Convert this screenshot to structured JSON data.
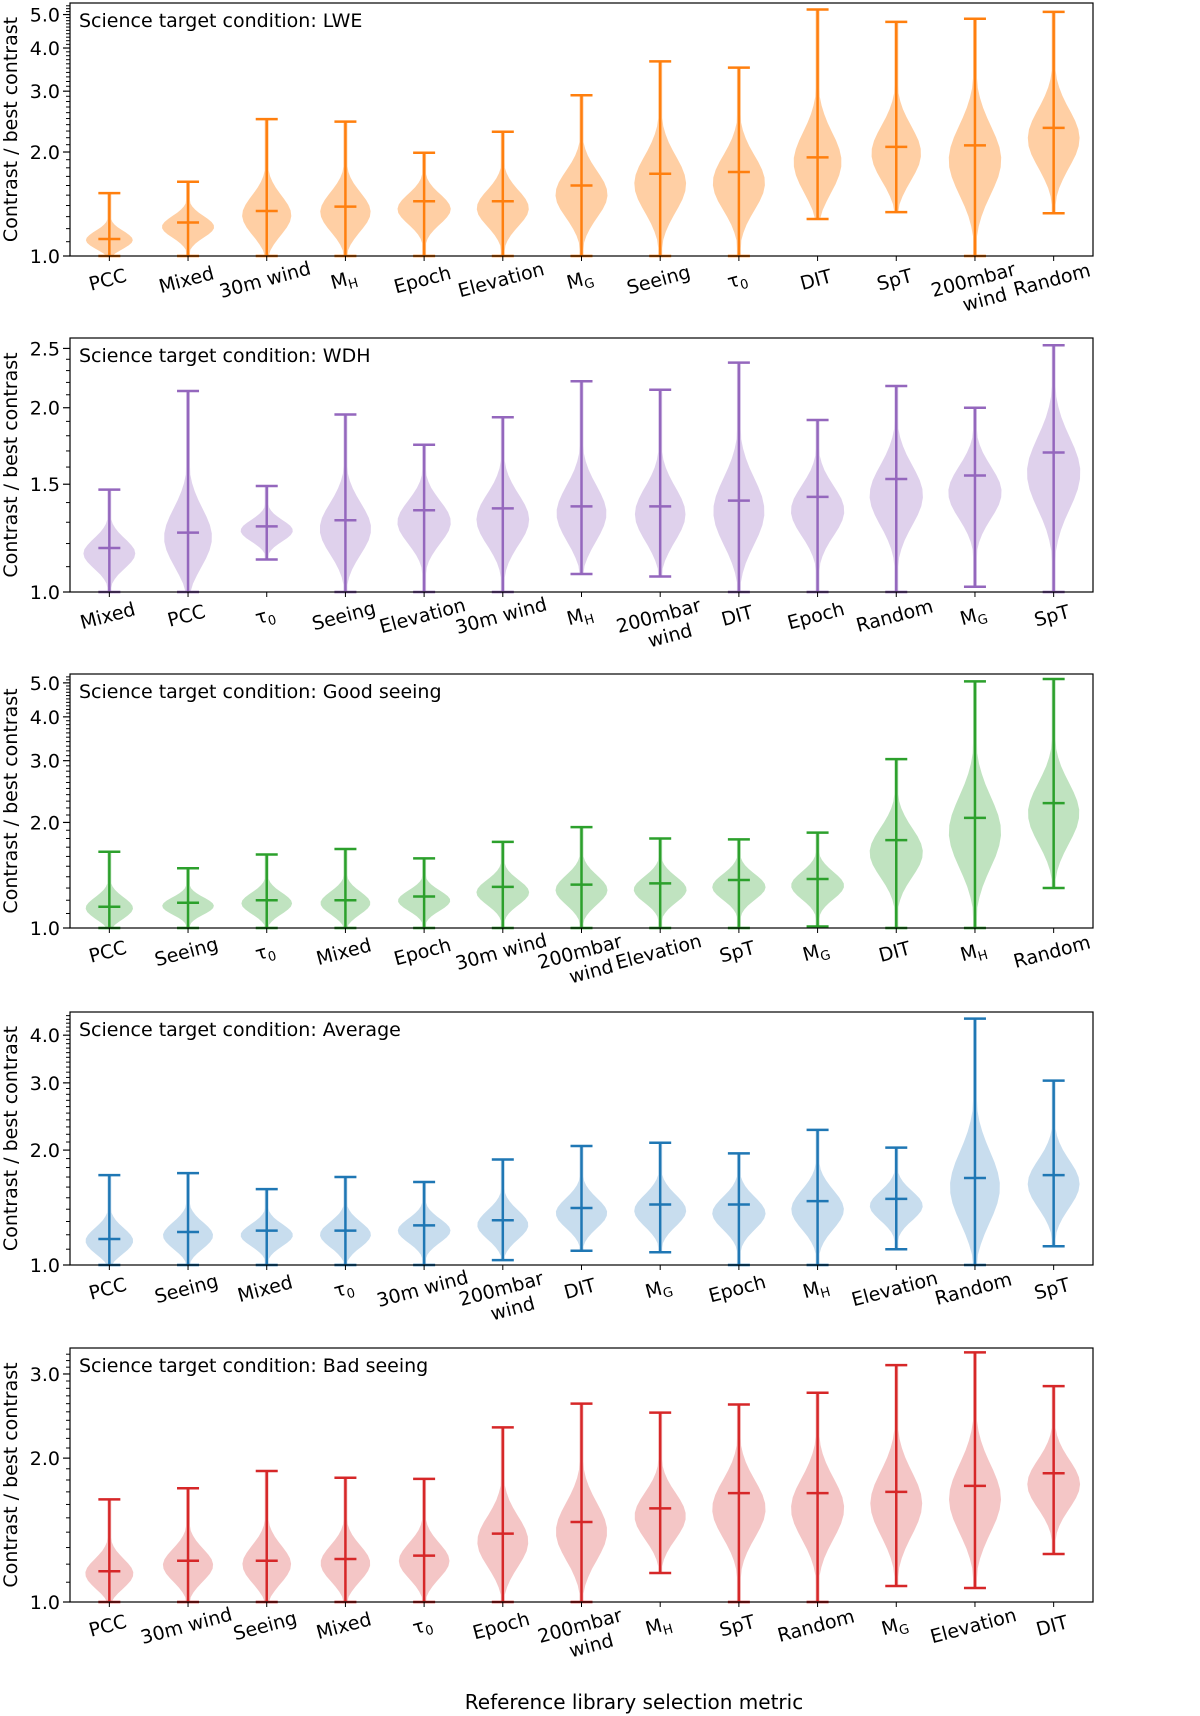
{
  "figure": {
    "xlabel": "Reference library selection metric",
    "ylabel": "Contrast / best contrast"
  },
  "chart_data": [
    {
      "type": "violin",
      "title": "Science target condition: LWE",
      "color": "#ff7f0e",
      "fill": "#ffbf86",
      "scale": "log",
      "ylim": [
        1.0,
        5.4
      ],
      "yticks": [
        1.0,
        2.0,
        3.0,
        4.0,
        5.0
      ],
      "ytick_labels": [
        "1.0",
        "2.0",
        "3.0",
        "4.0",
        "5.0"
      ],
      "categories": [
        "PCC",
        "Mixed",
        "30m wind",
        "M_H",
        "Epoch",
        "Elevation",
        "M_G",
        "Seeing",
        "τ_0",
        "DIT",
        "SpT",
        "200mbar wind",
        "Random"
      ],
      "min": [
        1.0,
        1.0,
        1.0,
        1.0,
        1.0,
        1.0,
        1.0,
        1.0,
        1.0,
        1.28,
        1.34,
        1.0,
        1.33
      ],
      "median": [
        1.12,
        1.25,
        1.35,
        1.39,
        1.44,
        1.44,
        1.6,
        1.73,
        1.75,
        1.93,
        2.07,
        2.09,
        2.35
      ],
      "max": [
        1.52,
        1.64,
        2.49,
        2.45,
        1.99,
        2.29,
        2.92,
        3.66,
        3.51,
        5.17,
        4.76,
        4.86,
        5.09
      ]
    },
    {
      "type": "violin",
      "title": "Science target condition: WDH",
      "color": "#9467bd",
      "fill": "#d4c2e5",
      "scale": "log",
      "ylim": [
        1.0,
        2.6
      ],
      "yticks": [
        1.0,
        1.5,
        2.0,
        2.5
      ],
      "ytick_labels": [
        "1.0",
        "1.5",
        "2.0",
        "2.5"
      ],
      "categories": [
        "Mixed",
        "PCC",
        "τ_0",
        "Seeing",
        "Elevation",
        "30m wind",
        "M_H",
        "200mbar wind",
        "DIT",
        "Epoch",
        "Random",
        "M_G",
        "SpT"
      ],
      "min": [
        1.0,
        1.0,
        1.13,
        1.0,
        1.0,
        1.0,
        1.07,
        1.06,
        1.0,
        1.0,
        1.0,
        1.02,
        1.0
      ],
      "median": [
        1.18,
        1.25,
        1.28,
        1.31,
        1.36,
        1.37,
        1.38,
        1.38,
        1.41,
        1.43,
        1.53,
        1.55,
        1.69
      ],
      "max": [
        1.47,
        2.13,
        1.49,
        1.95,
        1.74,
        1.93,
        2.21,
        2.14,
        2.37,
        1.91,
        2.17,
        2.0,
        2.53
      ]
    },
    {
      "type": "violin",
      "title": "Science target condition: Good seeing",
      "color": "#2ca02c",
      "fill": "#abd9ab",
      "scale": "log",
      "ylim": [
        1.0,
        5.3
      ],
      "yticks": [
        1.0,
        2.0,
        3.0,
        4.0,
        5.0
      ],
      "ytick_labels": [
        "1.0",
        "2.0",
        "3.0",
        "4.0",
        "5.0"
      ],
      "categories": [
        "PCC",
        "Seeing",
        "τ_0",
        "Mixed",
        "Epoch",
        "30m wind",
        "200mbar wind",
        "Elevation",
        "SpT",
        "M_G",
        "DIT",
        "M_H",
        "Random"
      ],
      "min": [
        1.0,
        1.0,
        1.0,
        1.0,
        1.0,
        1.0,
        1.0,
        1.0,
        1.0,
        1.01,
        1.0,
        1.0,
        1.3
      ],
      "median": [
        1.15,
        1.18,
        1.2,
        1.2,
        1.23,
        1.31,
        1.33,
        1.34,
        1.37,
        1.38,
        1.78,
        2.06,
        2.27
      ],
      "max": [
        1.65,
        1.48,
        1.62,
        1.68,
        1.58,
        1.76,
        1.94,
        1.8,
        1.79,
        1.87,
        3.03,
        5.05,
        5.13
      ]
    },
    {
      "type": "violin",
      "title": "Science target condition: Average",
      "color": "#1f77b4",
      "fill": "#b6d2e8",
      "scale": "log",
      "ylim": [
        1.0,
        4.6
      ],
      "yticks": [
        1.0,
        2.0,
        3.0,
        4.0
      ],
      "ytick_labels": [
        "1.0",
        "2.0",
        "3.0",
        "4.0"
      ],
      "categories": [
        "PCC",
        "Seeing",
        "Mixed",
        "τ_0",
        "30m wind",
        "200mbar wind",
        "DIT",
        "M_G",
        "Epoch",
        "M_H",
        "Elevation",
        "Random",
        "SpT"
      ],
      "min": [
        1.0,
        1.0,
        1.0,
        1.0,
        1.0,
        1.03,
        1.09,
        1.08,
        1.0,
        1.0,
        1.1,
        1.0,
        1.12
      ],
      "median": [
        1.17,
        1.22,
        1.23,
        1.23,
        1.27,
        1.31,
        1.41,
        1.44,
        1.44,
        1.47,
        1.49,
        1.69,
        1.72
      ],
      "max": [
        1.72,
        1.74,
        1.58,
        1.7,
        1.65,
        1.89,
        2.05,
        2.09,
        1.96,
        2.26,
        2.03,
        4.42,
        3.04
      ]
    },
    {
      "type": "violin",
      "title": "Science target condition: Bad seeing",
      "color": "#d62728",
      "fill": "#f0b3b3",
      "scale": "log",
      "ylim": [
        1.0,
        3.4
      ],
      "yticks": [
        1.0,
        2.0,
        3.0
      ],
      "ytick_labels": [
        "1.0",
        "2.0",
        "3.0"
      ],
      "categories": [
        "PCC",
        "30m wind",
        "Seeing",
        "Mixed",
        "τ_0",
        "Epoch",
        "200mbar wind",
        "M_H",
        "SpT",
        "Random",
        "M_G",
        "Elevation",
        "DIT"
      ],
      "min": [
        1.0,
        1.0,
        1.0,
        1.0,
        1.0,
        1.0,
        1.0,
        1.15,
        1.0,
        1.0,
        1.08,
        1.07,
        1.26
      ],
      "median": [
        1.16,
        1.22,
        1.22,
        1.23,
        1.25,
        1.39,
        1.47,
        1.57,
        1.69,
        1.69,
        1.7,
        1.75,
        1.86
      ],
      "max": [
        1.64,
        1.73,
        1.88,
        1.82,
        1.81,
        2.32,
        2.6,
        2.49,
        2.59,
        2.74,
        3.13,
        3.33,
        2.83
      ]
    }
  ]
}
